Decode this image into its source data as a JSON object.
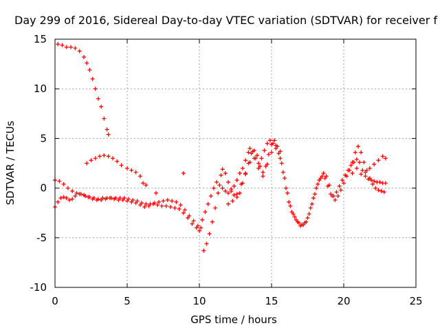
{
  "chart_data": {
    "type": "scatter",
    "title": "Day 299 of 2016, Sidereal Day-to-day VTEC variation (SDTVAR) for receiver f",
    "xlabel": "GPS time / hours",
    "ylabel": "SDTVAR / TECUs",
    "xlim": [
      0,
      25
    ],
    "ylim": [
      -10,
      15
    ],
    "xticks": [
      0,
      5,
      10,
      15,
      20,
      25
    ],
    "yticks": [
      -10,
      -5,
      0,
      5,
      10,
      15
    ],
    "x_tick_labels": [
      "0",
      "5",
      "10",
      "15",
      "20",
      "25"
    ],
    "y_tick_labels": [
      "-10",
      "-5",
      "0",
      "5",
      "10",
      "15"
    ],
    "grid": true,
    "marker": "plus",
    "series_color": "#ff0000",
    "series": [
      {
        "points": [
          [
            0.2,
            14.5
          ],
          [
            0.5,
            14.4
          ],
          [
            0.8,
            14.2
          ],
          [
            1.1,
            14.2
          ],
          [
            1.4,
            14.1
          ],
          [
            1.7,
            13.8
          ],
          [
            2.0,
            13.2
          ],
          [
            2.2,
            12.6
          ],
          [
            2.4,
            11.9
          ],
          [
            2.6,
            11.0
          ],
          [
            2.8,
            10.0
          ],
          [
            3.0,
            9.0
          ],
          [
            3.2,
            8.2
          ],
          [
            3.4,
            7.0
          ],
          [
            3.6,
            5.9
          ],
          [
            3.7,
            5.4
          ],
          [
            2.2,
            2.5
          ],
          [
            2.5,
            2.8
          ],
          [
            2.8,
            3.0
          ],
          [
            3.1,
            3.2
          ],
          [
            3.4,
            3.3
          ],
          [
            3.7,
            3.2
          ],
          [
            4.0,
            3.0
          ],
          [
            4.3,
            2.7
          ],
          [
            4.6,
            2.3
          ],
          [
            5.0,
            2.0
          ],
          [
            5.3,
            1.8
          ],
          [
            5.6,
            1.6
          ],
          [
            5.9,
            1.2
          ],
          [
            6.1,
            0.5
          ],
          [
            6.3,
            0.3
          ],
          [
            0.0,
            0.8
          ],
          [
            0.3,
            0.7
          ],
          [
            0.6,
            0.4
          ],
          [
            0.9,
            0.0
          ],
          [
            1.2,
            -0.3
          ],
          [
            1.5,
            -0.5
          ],
          [
            1.8,
            -0.6
          ],
          [
            2.1,
            -0.8
          ],
          [
            2.4,
            -0.9
          ],
          [
            2.7,
            -1.0
          ],
          [
            3.0,
            -1.1
          ],
          [
            3.3,
            -1.0
          ],
          [
            3.6,
            -1.0
          ],
          [
            3.9,
            -1.0
          ],
          [
            4.2,
            -1.0
          ],
          [
            4.5,
            -1.0
          ],
          [
            4.8,
            -1.0
          ],
          [
            5.1,
            -1.1
          ],
          [
            5.4,
            -1.2
          ],
          [
            5.7,
            -1.3
          ],
          [
            6.0,
            -1.5
          ],
          [
            6.3,
            -1.6
          ],
          [
            6.6,
            -1.6
          ],
          [
            6.9,
            -1.5
          ],
          [
            7.2,
            -1.4
          ],
          [
            7.5,
            -1.3
          ],
          [
            7.8,
            -1.2
          ],
          [
            8.1,
            -1.3
          ],
          [
            8.4,
            -1.4
          ],
          [
            8.7,
            -1.7
          ],
          [
            9.0,
            -2.2
          ],
          [
            9.3,
            -2.8
          ],
          [
            9.6,
            -3.3
          ],
          [
            9.9,
            -3.8
          ],
          [
            10.1,
            -4.0
          ],
          [
            10.2,
            -3.2
          ],
          [
            10.4,
            -2.4
          ],
          [
            10.6,
            -1.6
          ],
          [
            10.8,
            -0.8
          ],
          [
            11.0,
            0.0
          ],
          [
            11.2,
            0.6
          ],
          [
            11.4,
            0.3
          ],
          [
            11.6,
            0.0
          ],
          [
            11.8,
            -0.3
          ],
          [
            12.0,
            -0.5
          ],
          [
            12.2,
            -0.3
          ],
          [
            12.4,
            0.2
          ],
          [
            12.6,
            0.8
          ],
          [
            12.8,
            1.5
          ],
          [
            13.0,
            2.0
          ],
          [
            13.2,
            2.8
          ],
          [
            13.4,
            3.6
          ],
          [
            13.5,
            4.0
          ],
          [
            13.7,
            3.7
          ],
          [
            13.9,
            3.0
          ],
          [
            14.1,
            2.5
          ],
          [
            14.3,
            3.0
          ],
          [
            14.5,
            3.8
          ],
          [
            14.7,
            4.5
          ],
          [
            14.9,
            4.8
          ],
          [
            15.1,
            4.5
          ],
          [
            15.3,
            4.0
          ],
          [
            15.5,
            3.5
          ],
          [
            15.7,
            2.5
          ],
          [
            15.9,
            1.0
          ],
          [
            16.1,
            -0.5
          ],
          [
            16.3,
            -1.8
          ],
          [
            16.5,
            -2.6
          ],
          [
            16.7,
            -3.2
          ],
          [
            16.9,
            -3.5
          ],
          [
            17.1,
            -3.7
          ],
          [
            17.3,
            -3.5
          ],
          [
            17.5,
            -3.0
          ],
          [
            17.7,
            -2.0
          ],
          [
            17.9,
            -1.0
          ],
          [
            18.1,
            0.0
          ],
          [
            18.3,
            0.8
          ],
          [
            18.5,
            1.2
          ],
          [
            18.7,
            1.0
          ],
          [
            18.9,
            0.2
          ],
          [
            19.1,
            -0.6
          ],
          [
            19.3,
            -0.8
          ],
          [
            19.5,
            -0.4
          ],
          [
            19.7,
            0.2
          ],
          [
            19.9,
            0.8
          ],
          [
            20.1,
            1.3
          ],
          [
            20.3,
            1.8
          ],
          [
            20.5,
            2.3
          ],
          [
            20.7,
            2.6
          ],
          [
            20.9,
            2.9
          ],
          [
            21.1,
            2.6
          ],
          [
            21.3,
            1.8
          ],
          [
            21.5,
            1.2
          ],
          [
            21.7,
            0.9
          ],
          [
            21.9,
            0.8
          ],
          [
            22.1,
            0.7
          ],
          [
            22.3,
            0.6
          ],
          [
            22.5,
            0.6
          ],
          [
            22.7,
            0.5
          ],
          [
            22.9,
            0.5
          ],
          [
            0.0,
            -1.9
          ],
          [
            0.2,
            -1.4
          ],
          [
            0.4,
            -1.0
          ],
          [
            0.6,
            -0.9
          ],
          [
            0.8,
            -1.0
          ],
          [
            1.0,
            -1.2
          ],
          [
            1.2,
            -1.1
          ],
          [
            1.4,
            -0.8
          ],
          [
            1.7,
            -0.6
          ],
          [
            2.0,
            -0.7
          ],
          [
            2.3,
            -0.9
          ],
          [
            2.6,
            -1.1
          ],
          [
            2.9,
            -1.2
          ],
          [
            3.2,
            -1.2
          ],
          [
            3.5,
            -1.1
          ],
          [
            3.8,
            -1.0
          ],
          [
            4.1,
            -1.1
          ],
          [
            4.4,
            -1.2
          ],
          [
            4.7,
            -1.2
          ],
          [
            5.0,
            -1.3
          ],
          [
            5.3,
            -1.4
          ],
          [
            5.6,
            -1.5
          ],
          [
            5.9,
            -1.7
          ],
          [
            6.2,
            -1.9
          ],
          [
            6.5,
            -1.8
          ],
          [
            6.8,
            -1.6
          ],
          [
            7.1,
            -1.7
          ],
          [
            7.4,
            -1.8
          ],
          [
            7.7,
            -1.8
          ],
          [
            8.0,
            -1.9
          ],
          [
            8.3,
            -2.0
          ],
          [
            8.6,
            -2.1
          ],
          [
            8.9,
            -2.5
          ],
          [
            9.2,
            -3.0
          ],
          [
            9.5,
            -3.6
          ],
          [
            9.8,
            -4.0
          ],
          [
            10.0,
            -4.3
          ],
          [
            10.3,
            -6.3
          ],
          [
            10.5,
            -5.6
          ],
          [
            10.7,
            -4.6
          ],
          [
            10.9,
            -3.4
          ],
          [
            11.1,
            -2.0
          ],
          [
            11.3,
            -0.5
          ],
          [
            11.5,
            1.3
          ],
          [
            11.6,
            1.9
          ],
          [
            11.8,
            1.5
          ],
          [
            12.0,
            0.6
          ],
          [
            12.2,
            -0.1
          ],
          [
            12.4,
            -0.7
          ],
          [
            12.6,
            -0.9
          ],
          [
            12.8,
            -0.5
          ],
          [
            13.0,
            0.5
          ],
          [
            13.2,
            1.5
          ],
          [
            13.4,
            2.5
          ],
          [
            13.6,
            3.5
          ],
          [
            13.8,
            3.8
          ],
          [
            14.0,
            3.3
          ],
          [
            14.2,
            2.2
          ],
          [
            14.4,
            1.6
          ],
          [
            14.6,
            2.2
          ],
          [
            14.8,
            3.4
          ],
          [
            15.0,
            4.4
          ],
          [
            15.2,
            4.8
          ],
          [
            15.4,
            4.2
          ],
          [
            15.6,
            3.0
          ],
          [
            15.8,
            1.6
          ],
          [
            16.0,
            0.0
          ],
          [
            16.2,
            -1.4
          ],
          [
            16.4,
            -2.4
          ],
          [
            16.6,
            -2.9
          ],
          [
            16.8,
            -3.4
          ],
          [
            17.0,
            -3.8
          ],
          [
            17.2,
            -3.7
          ],
          [
            17.4,
            -3.4
          ],
          [
            17.6,
            -2.6
          ],
          [
            17.8,
            -1.6
          ],
          [
            18.0,
            -0.6
          ],
          [
            18.2,
            0.4
          ],
          [
            18.4,
            1.0
          ],
          [
            18.6,
            1.5
          ],
          [
            18.8,
            1.2
          ],
          [
            19.0,
            0.3
          ],
          [
            19.2,
            -0.8
          ],
          [
            19.4,
            -1.2
          ],
          [
            19.6,
            -0.8
          ],
          [
            19.8,
            -0.2
          ],
          [
            20.0,
            0.5
          ],
          [
            20.2,
            1.2
          ],
          [
            20.4,
            1.8
          ],
          [
            20.6,
            2.6
          ],
          [
            20.8,
            3.6
          ],
          [
            21.0,
            4.2
          ],
          [
            21.2,
            3.6
          ],
          [
            21.4,
            2.6
          ],
          [
            21.6,
            1.8
          ],
          [
            21.8,
            1.0
          ],
          [
            22.0,
            0.4
          ],
          [
            22.2,
            0.0
          ],
          [
            22.4,
            -0.2
          ],
          [
            22.6,
            -0.3
          ],
          [
            22.8,
            -0.4
          ],
          [
            12.0,
            -1.6
          ],
          [
            12.3,
            -1.3
          ],
          [
            12.6,
            -0.6
          ],
          [
            12.9,
            0.4
          ],
          [
            13.2,
            1.4
          ],
          [
            13.5,
            2.6
          ],
          [
            13.8,
            3.0
          ],
          [
            14.1,
            2.0
          ],
          [
            14.4,
            1.2
          ],
          [
            14.7,
            2.4
          ],
          [
            15.0,
            3.6
          ],
          [
            15.3,
            4.3
          ],
          [
            15.6,
            3.7
          ],
          [
            20.6,
            1.5
          ],
          [
            20.9,
            2.0
          ],
          [
            21.2,
            1.4
          ],
          [
            21.5,
            1.6
          ],
          [
            21.8,
            2.0
          ],
          [
            22.1,
            2.4
          ],
          [
            22.4,
            2.8
          ],
          [
            22.7,
            3.2
          ],
          [
            22.9,
            3.0
          ],
          [
            8.9,
            1.5
          ],
          [
            7.0,
            -0.5
          ]
        ]
      }
    ]
  }
}
